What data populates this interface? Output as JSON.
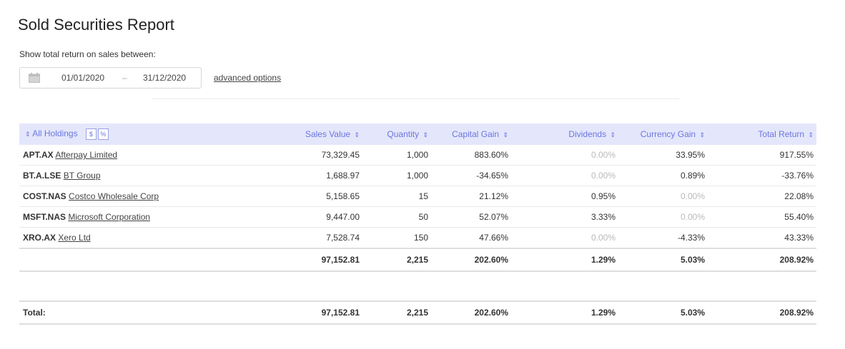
{
  "page": {
    "title": "Sold Securities Report",
    "subtitle": "Show total return on sales between:"
  },
  "date_range": {
    "start": "01/01/2020",
    "separator": "–",
    "end": "31/12/2020",
    "calendar_icon": "calendar-icon"
  },
  "advanced_options_label": "advanced options",
  "table": {
    "headers": {
      "holdings": "All Holdings",
      "toggle_dollar": "$",
      "toggle_percent": "%",
      "sales_value": "Sales Value",
      "quantity": "Quantity",
      "capital_gain": "Capital Gain",
      "dividends": "Dividends",
      "currency_gain": "Currency Gain",
      "total_return": "Total Return",
      "sort_icon": "⇕"
    },
    "rows": [
      {
        "ticker": "APT.AX",
        "name": "Afterpay Limited",
        "sales_value": "73,329.45",
        "quantity": "1,000",
        "capital_gain": "883.60%",
        "dividends": "0.00%",
        "currency_gain": "33.95%",
        "total_return": "917.55%"
      },
      {
        "ticker": "BT.A.LSE",
        "name": "BT Group",
        "sales_value": "1,688.97",
        "quantity": "1,000",
        "capital_gain": "-34.65%",
        "dividends": "0.00%",
        "currency_gain": "0.89%",
        "total_return": "-33.76%"
      },
      {
        "ticker": "COST.NAS",
        "name": "Costco Wholesale Corp",
        "sales_value": "5,158.65",
        "quantity": "15",
        "capital_gain": "21.12%",
        "dividends": "0.95%",
        "currency_gain": "0.00%",
        "total_return": "22.08%"
      },
      {
        "ticker": "MSFT.NAS",
        "name": "Microsoft Corporation",
        "sales_value": "9,447.00",
        "quantity": "50",
        "capital_gain": "52.07%",
        "dividends": "3.33%",
        "currency_gain": "0.00%",
        "total_return": "55.40%"
      },
      {
        "ticker": "XRO.AX",
        "name": "Xero Ltd",
        "sales_value": "7,528.74",
        "quantity": "150",
        "capital_gain": "47.66%",
        "dividends": "0.00%",
        "currency_gain": "-4.33%",
        "total_return": "43.33%"
      }
    ],
    "subtotal": {
      "sales_value": "97,152.81",
      "quantity": "2,215",
      "capital_gain": "202.60%",
      "dividends": "1.29%",
      "currency_gain": "5.03%",
      "total_return": "208.92%"
    }
  },
  "grand_total": {
    "label": "Total:",
    "sales_value": "97,152.81",
    "quantity": "2,215",
    "capital_gain": "202.60%",
    "dividends": "1.29%",
    "currency_gain": "5.03%",
    "total_return": "208.92%"
  },
  "colors": {
    "header_bg": "#e4e7fb",
    "header_text": "#6b75e0",
    "muted_value": "#b9b9b9"
  }
}
